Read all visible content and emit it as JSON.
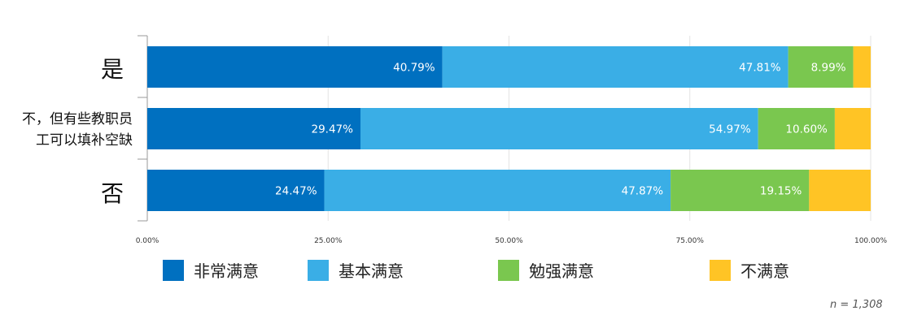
{
  "chart_data": {
    "type": "bar",
    "orientation": "horizontal",
    "stacked": true,
    "categories": [
      "是",
      "不，但有些教职员工可以填补空缺",
      "否"
    ],
    "series": [
      {
        "name": "非常满意",
        "color": "#0070c0",
        "values": [
          40.79,
          29.47,
          24.47
        ]
      },
      {
        "name": "基本满意",
        "color": "#3aaee6",
        "values": [
          47.81,
          54.97,
          47.87
        ]
      },
      {
        "name": "勉强满意",
        "color": "#7ac74f",
        "values": [
          8.99,
          10.6,
          19.15
        ]
      },
      {
        "name": "不满意",
        "color": "#ffc425",
        "values": [
          2.41,
          4.96,
          8.51
        ]
      }
    ],
    "data_labels": [
      [
        "40.79%",
        "47.81%",
        "8.99%",
        ""
      ],
      [
        "29.47%",
        "54.97%",
        "10.60%",
        ""
      ],
      [
        "24.47%",
        "47.87%",
        "19.15%",
        ""
      ]
    ],
    "xlim": [
      0,
      100
    ],
    "x_ticks": [
      "0.00%",
      "25.00%",
      "50.00%",
      "75.00%",
      "100.00%"
    ],
    "grid": true,
    "legend_position": "bottom"
  },
  "category_display": {
    "cat0": "是",
    "cat1_line1": "不，但有些教职员",
    "cat1_line2": "工可以填补空缺",
    "cat2": "否"
  },
  "legend": [
    "非常满意",
    "基本满意",
    "勉强满意",
    "不满意"
  ],
  "note": "n = 1,308"
}
